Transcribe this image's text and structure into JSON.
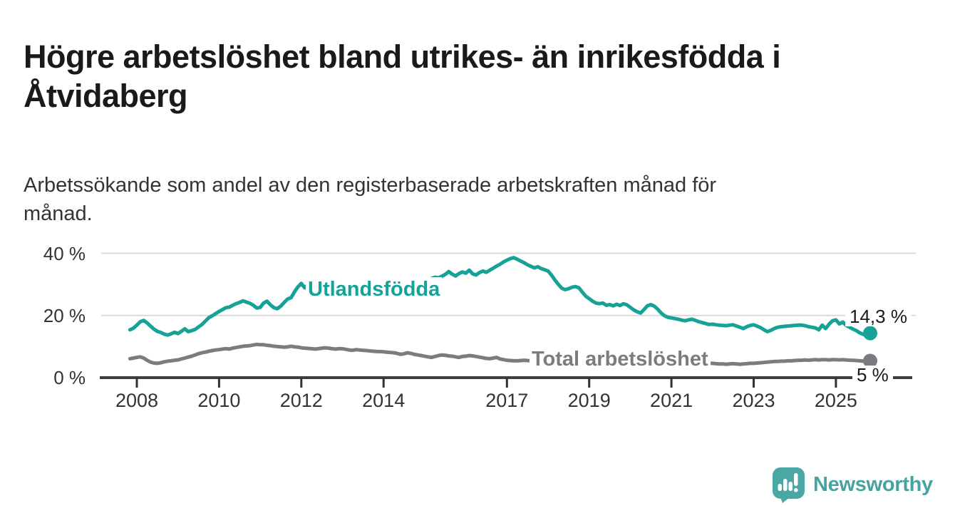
{
  "title": {
    "lines": [
      "Högre arbetslöshet bland utrikes- än inrikesfödda i",
      "Åtvidaberg"
    ]
  },
  "subtitle": {
    "lines": [
      "Arbetssökande som andel av den registerbaserade arbetskraften månad för",
      "månad."
    ]
  },
  "colors": {
    "accent_teal": "#16a296",
    "neutral_gray": "#7b7b80",
    "gridline": "#d9d9d9",
    "axis": "#3f3f3f",
    "tick": "#333333",
    "text_dark": "#1a1a1a",
    "logo_mark": "#4ba7a4",
    "logo_text": "#46a3a2"
  },
  "chart_data": {
    "type": "line",
    "unit": "%",
    "grid": "horizontal-only",
    "x_start": 2007.8333,
    "x_step_months": 1,
    "x_ticks": [
      2008,
      2010,
      2012,
      2014,
      2017,
      2019,
      2021,
      2023,
      2025
    ],
    "x_tick_labels": [
      "2008",
      "2010",
      "2012",
      "2014",
      "2017",
      "2019",
      "2021",
      "2023",
      "2025"
    ],
    "y_ticks": [
      0,
      20,
      40
    ],
    "y_tick_labels": [
      "0 %",
      "20 %",
      "40 %"
    ],
    "ylim": [
      0,
      43
    ],
    "series": [
      {
        "name": "Utlandsfödda",
        "color": "#16a296",
        "end_label": "14,3 %",
        "last_value": 14.3,
        "values": [
          15.4,
          15.9,
          16.9,
          18.0,
          18.4,
          17.6,
          16.6,
          15.6,
          14.9,
          14.5,
          14.0,
          13.7,
          14.1,
          14.6,
          14.2,
          14.9,
          15.7,
          14.8,
          15.1,
          15.5,
          16.3,
          17.1,
          18.2,
          19.3,
          19.9,
          20.6,
          21.3,
          21.9,
          22.5,
          22.7,
          23.3,
          23.8,
          24.2,
          24.7,
          24.3,
          23.9,
          23.3,
          22.4,
          22.6,
          24.0,
          24.6,
          23.4,
          22.5,
          22.2,
          23.0,
          24.2,
          25.3,
          25.7,
          27.6,
          29.2,
          30.3,
          28.9,
          30.0,
          28.3,
          27.4,
          27.8,
          28.3,
          27.6,
          27.9,
          28.4,
          28.0,
          28.3,
          28.7,
          29.0,
          28.6,
          28.1,
          27.6,
          27.2,
          26.8,
          27.0,
          27.3,
          27.6,
          27.4,
          27.7,
          27.9,
          27.6,
          28.0,
          28.4,
          28.2,
          28.6,
          29.0,
          29.4,
          29.8,
          30.1,
          30.4,
          30.8,
          31.1,
          31.5,
          31.9,
          32.3,
          32.1,
          32.6,
          33.2,
          34.1,
          33.3,
          32.7,
          33.5,
          34.0,
          33.6,
          34.6,
          33.4,
          33.0,
          33.8,
          34.3,
          33.9,
          34.6,
          35.2,
          35.9,
          36.5,
          37.2,
          37.8,
          38.3,
          38.6,
          38.1,
          37.5,
          37.0,
          36.3,
          35.8,
          35.3,
          35.7,
          35.1,
          34.7,
          34.3,
          33.0,
          31.4,
          30.0,
          28.8,
          28.3,
          28.6,
          29.1,
          29.3,
          28.9,
          27.5,
          26.2,
          25.4,
          24.6,
          24.0,
          23.8,
          24.0,
          23.3,
          23.5,
          23.1,
          23.6,
          23.2,
          23.8,
          23.4,
          22.6,
          21.8,
          21.2,
          20.8,
          21.9,
          23.1,
          23.5,
          23.0,
          22.0,
          20.8,
          19.9,
          19.4,
          19.2,
          19.0,
          18.8,
          18.5,
          18.3,
          18.6,
          18.8,
          18.4,
          18.0,
          17.7,
          17.4,
          17.1,
          17.2,
          17.0,
          16.9,
          16.8,
          16.7,
          16.9,
          17.0,
          16.6,
          16.2,
          15.8,
          16.4,
          16.8,
          17.0,
          16.6,
          16.1,
          15.4,
          14.8,
          15.2,
          15.8,
          16.2,
          16.4,
          16.5,
          16.6,
          16.7,
          16.8,
          16.9,
          16.9,
          16.7,
          16.4,
          16.2,
          16.0,
          15.4,
          16.9,
          15.8,
          17.2,
          18.3,
          18.6,
          17.3,
          17.9,
          16.8,
          16.2,
          15.6,
          15.1,
          14.4,
          13.9,
          14.0,
          14.3
        ]
      },
      {
        "name": "Total arbetslöshet",
        "color": "#7b7b80",
        "end_label": "5 %",
        "last_value": 5.4,
        "values": [
          6.1,
          6.3,
          6.5,
          6.7,
          6.3,
          5.6,
          5.0,
          4.7,
          4.6,
          4.8,
          5.1,
          5.3,
          5.4,
          5.6,
          5.7,
          6.0,
          6.3,
          6.6,
          6.9,
          7.3,
          7.7,
          8.0,
          8.2,
          8.5,
          8.7,
          8.9,
          9.0,
          9.2,
          9.3,
          9.2,
          9.5,
          9.7,
          9.9,
          10.1,
          10.2,
          10.3,
          10.5,
          10.7,
          10.6,
          10.6,
          10.4,
          10.3,
          10.1,
          10.0,
          9.9,
          9.8,
          9.9,
          10.1,
          9.9,
          9.8,
          9.6,
          9.5,
          9.4,
          9.3,
          9.2,
          9.3,
          9.5,
          9.6,
          9.5,
          9.3,
          9.2,
          9.3,
          9.3,
          9.1,
          8.9,
          8.8,
          9.0,
          8.9,
          8.8,
          8.7,
          8.6,
          8.5,
          8.4,
          8.4,
          8.3,
          8.2,
          8.1,
          8.0,
          7.8,
          7.5,
          7.7,
          8.0,
          7.8,
          7.5,
          7.3,
          7.1,
          6.9,
          6.7,
          6.5,
          6.8,
          7.1,
          7.3,
          7.2,
          7.0,
          6.9,
          6.7,
          6.5,
          6.8,
          6.9,
          7.1,
          7.0,
          6.8,
          6.6,
          6.4,
          6.2,
          6.1,
          6.3,
          6.5,
          6.0,
          5.8,
          5.6,
          5.5,
          5.4,
          5.4,
          5.5,
          5.6,
          5.5,
          5.4,
          5.5,
          5.6,
          5.5,
          5.6,
          5.5,
          5.4,
          5.3,
          5.2,
          5.2,
          5.3,
          5.2,
          5.1,
          5.2,
          5.1,
          5.0,
          5.1,
          5.2,
          5.1,
          5.0,
          5.1,
          5.2,
          5.1,
          5.2,
          5.3,
          5.2,
          5.3,
          5.4,
          5.5,
          5.6,
          5.7,
          6.0,
          6.4,
          6.6,
          6.7,
          6.6,
          6.5,
          6.3,
          6.1,
          5.9,
          5.8,
          5.7,
          5.6,
          5.5,
          5.4,
          5.3,
          5.2,
          5.1,
          5.0,
          4.9,
          4.8,
          4.7,
          4.6,
          4.6,
          4.5,
          4.4,
          4.4,
          4.3,
          4.4,
          4.5,
          4.4,
          4.3,
          4.4,
          4.5,
          4.6,
          4.6,
          4.7,
          4.8,
          4.9,
          5.0,
          5.1,
          5.2,
          5.2,
          5.3,
          5.3,
          5.4,
          5.4,
          5.5,
          5.6,
          5.6,
          5.7,
          5.6,
          5.7,
          5.8,
          5.7,
          5.8,
          5.8,
          5.7,
          5.8,
          5.8,
          5.7,
          5.8,
          5.7,
          5.6,
          5.6,
          5.5,
          5.4,
          5.3,
          5.2,
          5.4
        ]
      }
    ]
  },
  "logo": {
    "text": "Newsworthy"
  }
}
